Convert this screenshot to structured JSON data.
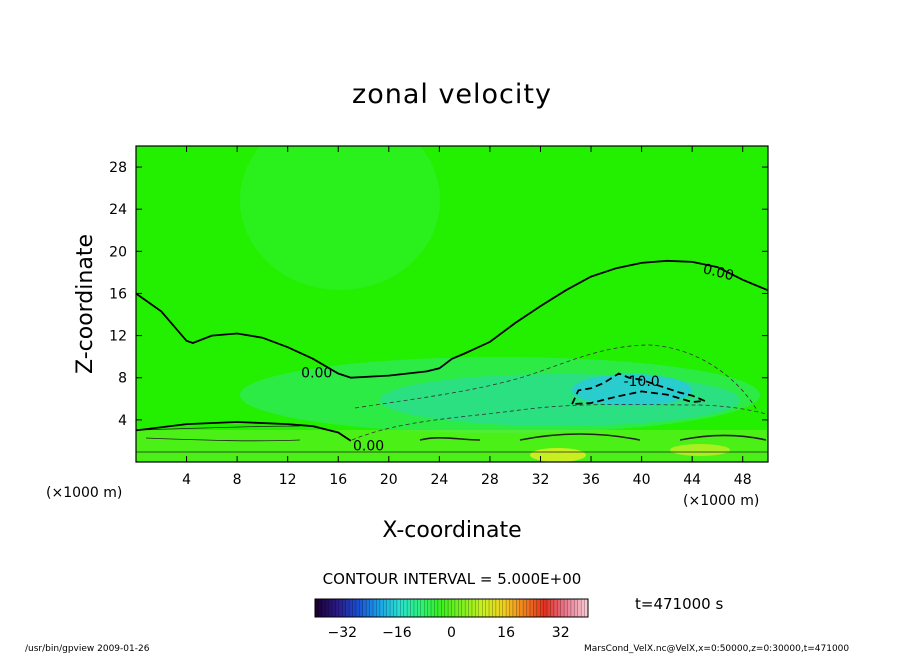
{
  "chart_data": {
    "type": "heatmap",
    "title": "zonal velocity",
    "xlabel": "X-coordinate",
    "ylabel": "Z-coordinate",
    "x_unit_label": "(×1000 m)",
    "z_unit_label": "(×1000 m)",
    "x_range": [
      0,
      50
    ],
    "z_range": [
      0,
      30
    ],
    "x_ticks": [
      4,
      8,
      12,
      16,
      20,
      24,
      28,
      32,
      36,
      40,
      44,
      48
    ],
    "z_ticks": [
      4,
      8,
      12,
      16,
      20,
      24,
      28
    ],
    "contour_interval_text": "CONTOUR INTERVAL = 5.000E+00",
    "time_text": "t=471000 s",
    "colorbar": {
      "range": [
        -40,
        40
      ],
      "ticks": [
        -32,
        -16,
        0,
        16,
        32
      ],
      "colors": [
        "#1a0033",
        "#2a1a88",
        "#1a4fd0",
        "#1aa0e8",
        "#2ae0d0",
        "#2ef07a",
        "#3cef20",
        "#7cf020",
        "#c8f020",
        "#f0d020",
        "#f08020",
        "#e03020",
        "#e87890",
        "#f8c8d0"
      ]
    },
    "field_colors": {
      "background": "#22f000",
      "negative_weak": "#2ee86a",
      "negative_mid": "#2ad9b0",
      "negative_strong": "#2ac8e0",
      "positive": "#c8f020"
    },
    "contours": [
      {
        "level": "0.00",
        "label_x": 14.3,
        "label_z": 8.0,
        "points": [
          [
            0,
            16
          ],
          [
            2,
            14.3
          ],
          [
            4,
            11.5
          ],
          [
            4.5,
            11.3
          ],
          [
            6,
            12.0
          ],
          [
            8,
            12.2
          ],
          [
            10,
            11.8
          ],
          [
            12,
            10.9
          ],
          [
            14,
            9.8
          ],
          [
            16,
            8.4
          ],
          [
            17,
            8.0
          ],
          [
            20,
            8.2
          ],
          [
            23,
            8.6
          ],
          [
            24,
            8.9
          ],
          [
            25,
            9.8
          ],
          [
            26,
            10.3
          ],
          [
            28,
            11.4
          ],
          [
            30,
            13.2
          ],
          [
            32,
            14.8
          ],
          [
            34,
            16.3
          ],
          [
            36,
            17.6
          ],
          [
            38,
            18.4
          ],
          [
            40,
            18.9
          ],
          [
            42,
            19.1
          ],
          [
            44,
            19.0
          ],
          [
            46,
            18.5
          ],
          [
            48,
            17.3
          ],
          [
            50,
            16.3
          ]
        ]
      },
      {
        "level": "-10.0",
        "label_x": 40.0,
        "label_z": 7.2,
        "points": [
          [
            34.5,
            5.5
          ],
          [
            35,
            6.8
          ],
          [
            36,
            7.0
          ],
          [
            37,
            7.5
          ],
          [
            38.2,
            8.4
          ],
          [
            39,
            8.0
          ],
          [
            40,
            7.8
          ],
          [
            41,
            7.4
          ],
          [
            42,
            7.0
          ],
          [
            43,
            6.6
          ],
          [
            44,
            6.3
          ],
          [
            45,
            5.8
          ],
          [
            44,
            5.7
          ],
          [
            42,
            6.4
          ],
          [
            40,
            6.7
          ],
          [
            38,
            6.2
          ],
          [
            36,
            5.6
          ],
          [
            34.5,
            5.5
          ]
        ]
      },
      {
        "level": "0.00",
        "label_x": 18.4,
        "label_z": 1.1,
        "points": [
          [
            0,
            3.0
          ],
          [
            4,
            3.6
          ],
          [
            8,
            3.8
          ],
          [
            12,
            3.6
          ],
          [
            14,
            3.4
          ],
          [
            16,
            2.8
          ],
          [
            17,
            2.0
          ]
        ]
      }
    ],
    "footer_left": "/usr/bin/gpview   2009-01-26",
    "footer_right": "MarsCond_VelX.nc@VelX,x=0:50000,z=0:30000,t=471000"
  }
}
